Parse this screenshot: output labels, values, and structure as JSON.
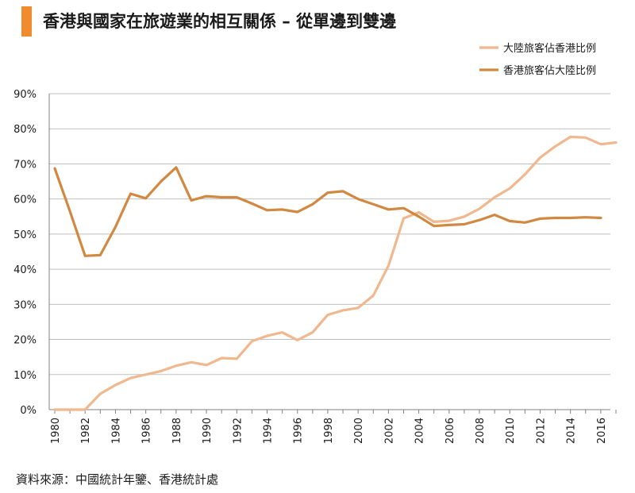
{
  "title": "香港與國家在旅遊業的相互關係 – 從單邊到雙邊",
  "source": "資料來源：中國統計年鑒、香港統計處",
  "colors": {
    "accent_bar": "#f08c2e",
    "series_light": "#f0b88e",
    "series_dark": "#d18841",
    "grid": "#bfbfbf",
    "axis": "#808080"
  },
  "chart_data": {
    "type": "line",
    "title": "香港與國家在旅遊業的相互關係 – 從單邊到雙邊",
    "xlabel": "",
    "ylabel": "",
    "xlim": [
      1980,
      2017
    ],
    "ylim": [
      0,
      90
    ],
    "y_ticks": [
      0,
      10,
      20,
      30,
      40,
      50,
      60,
      70,
      80,
      90
    ],
    "y_tick_labels": [
      "0%",
      "10%",
      "20%",
      "30%",
      "40%",
      "50%",
      "60%",
      "70%",
      "80%",
      "90%"
    ],
    "x_ticks": [
      1980,
      1982,
      1984,
      1986,
      1988,
      1990,
      1992,
      1994,
      1996,
      1998,
      2000,
      2002,
      2004,
      2006,
      2008,
      2010,
      2012,
      2014,
      2016
    ],
    "x_tick_labels": [
      "1980",
      "1982",
      "1984",
      "1986",
      "1988",
      "1990",
      "1992",
      "1994",
      "1996",
      "1998",
      "2000",
      "2002",
      "2004",
      "2006",
      "2008",
      "2010",
      "2012",
      "2014",
      "2016"
    ],
    "grid": true,
    "legend_position": "top-right",
    "series": [
      {
        "name": "大陸旅客佔香港比例",
        "color": "#f0b88e",
        "x": [
          1980,
          1981,
          1982,
          1983,
          1984,
          1985,
          1986,
          1987,
          1988,
          1989,
          1990,
          1991,
          1992,
          1993,
          1994,
          1995,
          1996,
          1997,
          1998,
          1999,
          2000,
          2001,
          2002,
          2003,
          2004,
          2005,
          2006,
          2007,
          2008,
          2009,
          2010,
          2011,
          2012,
          2013,
          2014,
          2015,
          2016,
          2017
        ],
        "values": [
          0,
          0,
          0,
          4.5,
          7,
          9,
          10,
          11,
          12.5,
          13.5,
          12.7,
          14.7,
          14.5,
          19.5,
          21,
          22,
          19.8,
          22,
          27,
          28.3,
          29,
          32.5,
          41,
          54.5,
          56.2,
          53.5,
          53.8,
          55,
          57.2,
          60.5,
          63,
          67,
          71.8,
          75,
          77.7,
          77.5,
          75.6,
          76.1
        ]
      },
      {
        "name": "香港旅客佔大陸比例",
        "color": "#d18841",
        "x": [
          1980,
          1981,
          1982,
          1983,
          1984,
          1985,
          1986,
          1987,
          1988,
          1989,
          1990,
          1991,
          1992,
          1993,
          1994,
          1995,
          1996,
          1997,
          1998,
          1999,
          2000,
          2001,
          2002,
          2003,
          2004,
          2005,
          2006,
          2007,
          2008,
          2009,
          2010,
          2011,
          2012,
          2013,
          2014,
          2015,
          2016
        ],
        "values": [
          68.7,
          56.5,
          43.8,
          44,
          52,
          61.5,
          60.2,
          65,
          69,
          59.6,
          60.8,
          60.5,
          60.5,
          58.7,
          56.8,
          57,
          56.3,
          58.5,
          61.8,
          62.2,
          60,
          58.5,
          57,
          57.4,
          55,
          52.3,
          52.6,
          52.8,
          54,
          55.5,
          53.7,
          53.3,
          54.4,
          54.6,
          54.6,
          54.8,
          54.6
        ]
      }
    ]
  }
}
